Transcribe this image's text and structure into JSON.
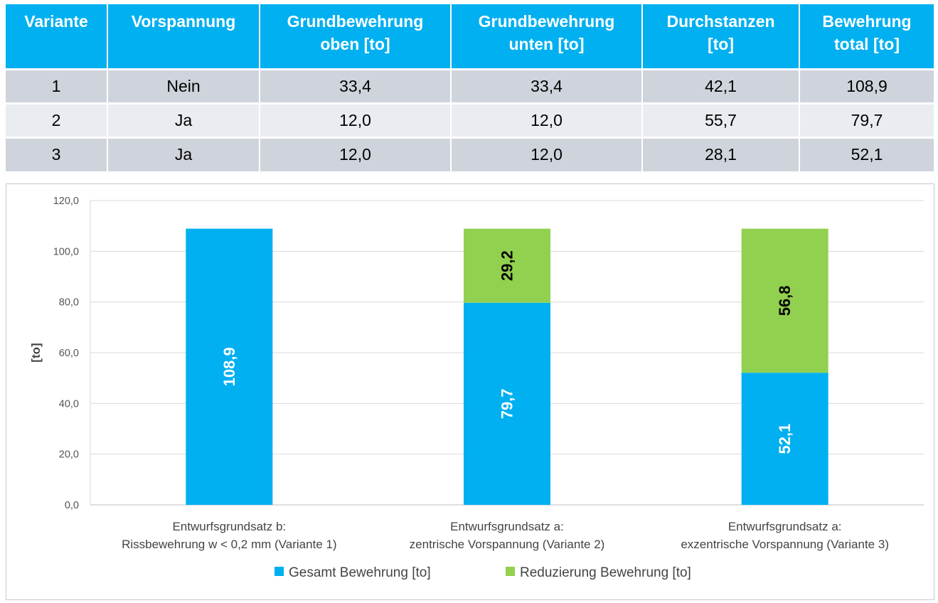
{
  "table": {
    "headers": [
      [
        "Variante"
      ],
      [
        "Vorspannung"
      ],
      [
        "Grundbewehrung",
        "oben [to]"
      ],
      [
        "Grundbewehrung",
        "unten [to]"
      ],
      [
        "Durchstanzen",
        "[to]"
      ],
      [
        "Bewehrung",
        "total [to]"
      ]
    ],
    "rows": [
      [
        "1",
        "Nein",
        "33,4",
        "33,4",
        "42,1",
        "108,9"
      ],
      [
        "2",
        "Ja",
        "12,0",
        "12,0",
        "55,7",
        "79,7"
      ],
      [
        "3",
        "Ja",
        "12,0",
        "12,0",
        "28,1",
        "52,1"
      ]
    ]
  },
  "chart_data": {
    "type": "bar",
    "stacked": true,
    "categories": [
      [
        "Entwurfsgrundsatz b:",
        "Rissbewehrung w < 0,2 mm (Variante 1)"
      ],
      [
        "Entwurfsgrundsatz a:",
        "zentrische Vorspannung (Variante 2)"
      ],
      [
        "Entwurfsgrundsatz a:",
        "exzentrische Vorspannung (Variante 3)"
      ]
    ],
    "series": [
      {
        "name": "Gesamt Bewehrung [to]",
        "values": [
          108.9,
          79.7,
          52.1
        ],
        "labels": [
          "108,9",
          "79,7",
          "52,1"
        ],
        "color": "#00b0f0",
        "label_color": "#ffffff"
      },
      {
        "name": "Reduzierung Bewehrung [to]",
        "values": [
          0,
          29.2,
          56.8
        ],
        "labels": [
          "",
          "29,2",
          "56,8"
        ],
        "color": "#92d050",
        "label_color": "#000000"
      }
    ],
    "ylabel": "[to]",
    "ylim": [
      0,
      120
    ],
    "yticks": [
      0,
      20,
      40,
      60,
      80,
      100,
      120
    ],
    "ytick_labels": [
      "0,0",
      "20,0",
      "40,0",
      "60,0",
      "80,0",
      "100,0",
      "120,0"
    ],
    "grid": true,
    "legend": "bottom"
  }
}
